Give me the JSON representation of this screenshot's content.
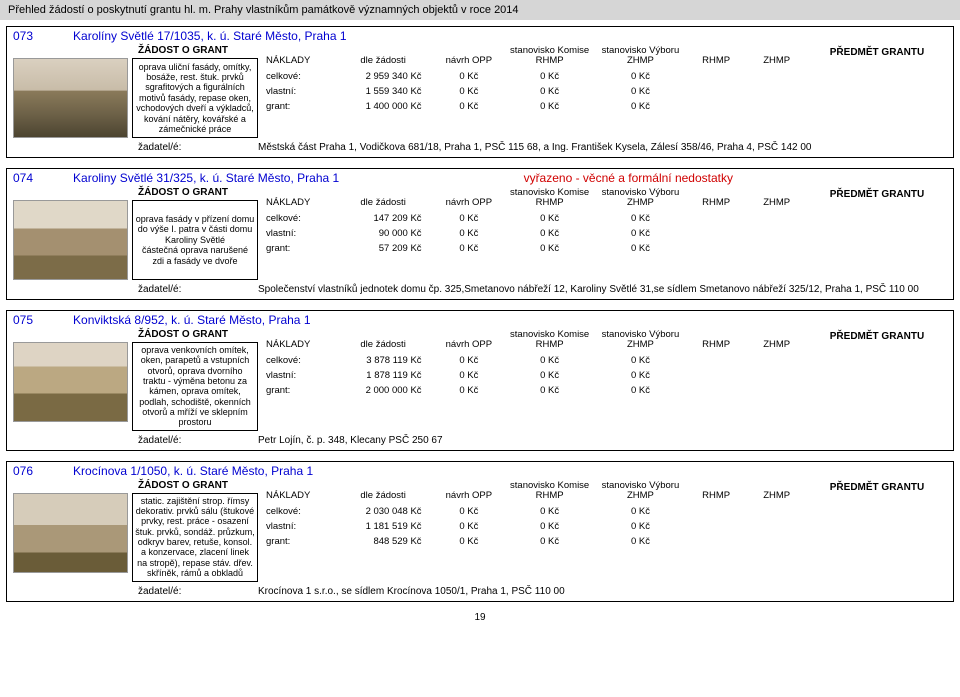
{
  "page_header": "Přehled žádostí o poskytnutí grantu hl. m. Prahy vlastníkům památkově významných objektů v roce 2014",
  "labels": {
    "zadost": "ŽÁDOST O GRANT",
    "predmet": "PŘEDMĚT GRANTU",
    "naklady": "NÁKLADY",
    "dle_zadosti": "dle žádosti",
    "navrh_opp": "návrh OPP",
    "stanovisko_komise": "stanovisko Komise RHMP",
    "stanovisko_vyboru": "stanovisko Výboru ZHMP",
    "rhmp": "RHMP",
    "zhmp": "ZHMP",
    "celkove": "celkové:",
    "vlastni": "vlastní:",
    "grant": "grant:",
    "zadatel": "žadatel/é:"
  },
  "entries": [
    {
      "id": "073",
      "address": "Karolíny Světlé 17/1035, k. ú. Staré Město, Praha 1",
      "status": "",
      "desc": "oprava uliční fasády, omítky, bosáže, rest. štuk. prvků sgrafitových a figurálních motivů fasády, repase oken, vchodových dveří a výkladců, kování nátěry, kovářské a zámečnické práce",
      "photo_class": "ph1",
      "celkove": "2 959 340 Kč",
      "vlastni": "1 559 340 Kč",
      "grantv": "1 400 000 Kč",
      "kc0": "0 Kč",
      "applicant": "Městská část Praha 1, Vodičkova 681/18, Praha 1, PSČ 115 68, a Ing. František Kysela, Zálesí 358/46, Praha 4, PSČ 142 00"
    },
    {
      "id": "074",
      "address": "Karoliny Světlé 31/325, k. ú. Staré Město, Praha 1",
      "status": "vyřazeno  - věcné a formální nedostatky",
      "desc": "oprava fasády v přízení domu do výše I. patra v části domu Karoliny Světlé\nčástečná oprava narušené zdi a fasády ve dvoře",
      "photo_class": "ph2",
      "celkove": "147 209 Kč",
      "vlastni": "90 000 Kč",
      "grantv": "57 209 Kč",
      "kc0": "0 Kč",
      "applicant": "Společenství vlastníků jednotek domu čp. 325,Smetanovo nábřeží 12, Karoliny Světlé 31,se sídlem Smetanovo nábřeží 325/12, Praha 1, PSČ 110 00"
    },
    {
      "id": "075",
      "address": "Konviktská 8/952, k. ú. Staré Město, Praha 1",
      "status": "",
      "desc": "oprava venkovních omítek, oken, parapetů a vstupních otvorů, oprava dvorního traktu  - výměna betonu za kámen,    oprava omítek, podlah, schodiště, okenních otvorů a mříží ve sklepním prostoru",
      "photo_class": "ph3",
      "celkove": "3 878 119 Kč",
      "vlastni": "1 878 119 Kč",
      "grantv": "2 000 000 Kč",
      "kc0": "0 Kč",
      "applicant": "Petr Lojín, č. p. 348, Klecany PSČ 250 67"
    },
    {
      "id": "076",
      "address": "Krocínova 1/1050, k. ú. Staré Město, Praha 1",
      "status": "",
      "desc": "static. zajištění strop. římsy dekorativ. prvků sálu (štukové prvky, rest. práce - osazení štuk. prvků, sondáž. průzkum, odkryv barev, retuše, konsol. a konzervace, zlacení linek na stropě), repase stáv. dřev. skříněk, rámů a obkladů",
      "photo_class": "ph4",
      "celkove": "2 030 048 Kč",
      "vlastni": "1 181 519 Kč",
      "grantv": "848 529 Kč",
      "kc0": "0 Kč",
      "applicant": "Krocínova 1 s.r.o., se sídlem Krocínova 1050/1, Praha 1,  PSČ 110 00"
    }
  ],
  "page_num": "19"
}
